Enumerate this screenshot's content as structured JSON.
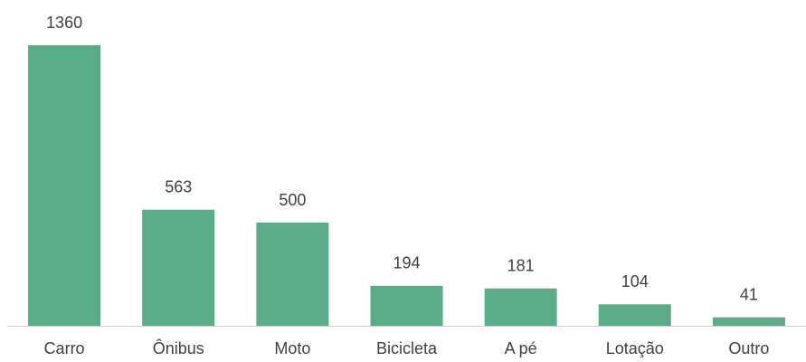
{
  "chart_data": {
    "type": "bar",
    "categories": [
      "Carro",
      "Ônibus",
      "Moto",
      "Bicicleta",
      "A pé",
      "Lotação",
      "Outro"
    ],
    "values": [
      1360,
      563,
      500,
      194,
      181,
      104,
      41
    ],
    "color": "#5aab88"
  }
}
